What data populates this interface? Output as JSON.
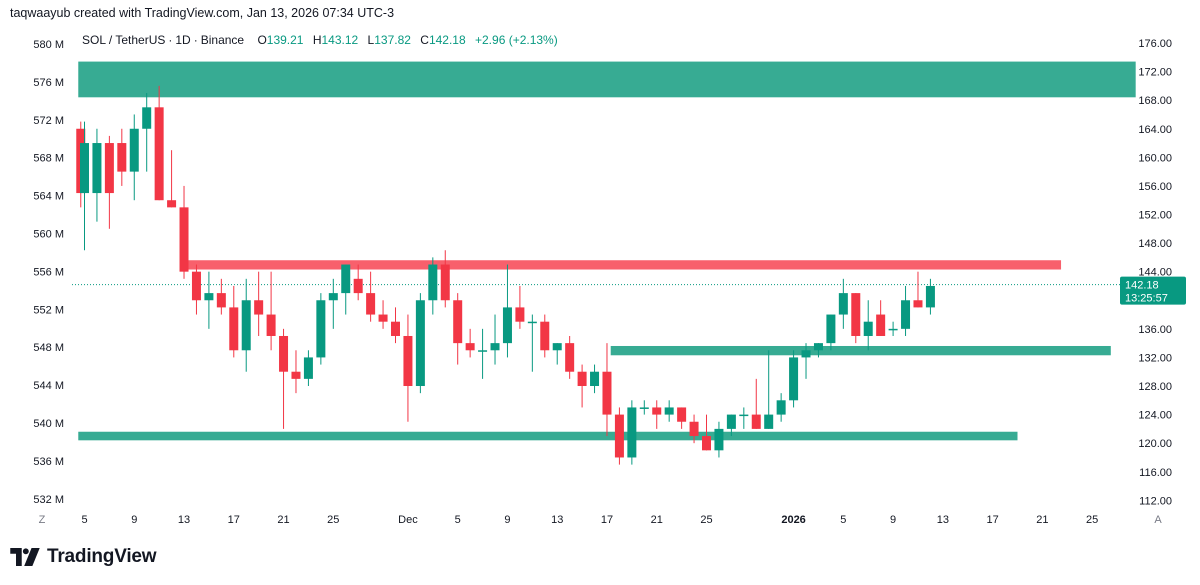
{
  "caption": "taqwaayub created with TradingView.com, Jan 13, 2026 07:34 UTC-3",
  "legend": {
    "symbol": "SOL / TetherUS",
    "interval": "1D",
    "exchange": "Binance",
    "open_label": "O",
    "open": "139.21",
    "high_label": "H",
    "high": "143.12",
    "low_label": "L",
    "low": "137.82",
    "close_label": "C",
    "close": "142.18",
    "change": "+2.96 (+2.13%)"
  },
  "brand": {
    "name": "TradingView"
  },
  "colors": {
    "up": "#089981",
    "down": "#f23645",
    "zone_green": "#26a48a",
    "zone_red": "#f7525f",
    "price_label": "#089981"
  },
  "chart_data": {
    "type": "candlestick",
    "title": "SOL / TetherUS · 1D · Binance",
    "right_axis": {
      "ylim": [
        110,
        177.5
      ],
      "ticks": [
        "176.00",
        "172.00",
        "168.00",
        "164.00",
        "160.00",
        "156.00",
        "152.00",
        "148.00",
        "144.00",
        "140.00",
        "136.00",
        "132.00",
        "128.00",
        "124.00",
        "120.00",
        "116.00",
        "112.00"
      ]
    },
    "left_axis": {
      "ticks": [
        "580 M",
        "576 M",
        "572 M",
        "568 M",
        "564 M",
        "560 M",
        "556 M",
        "552 M",
        "548 M",
        "544 M",
        "540 M",
        "536 M",
        "532 M"
      ]
    },
    "x_ticks": [
      {
        "day": 0,
        "label": "5"
      },
      {
        "day": 4,
        "label": "9"
      },
      {
        "day": 8,
        "label": "13"
      },
      {
        "day": 12,
        "label": "17"
      },
      {
        "day": 16,
        "label": "21"
      },
      {
        "day": 20,
        "label": "25"
      },
      {
        "day": 26,
        "label": "Dec"
      },
      {
        "day": 30,
        "label": "5"
      },
      {
        "day": 34,
        "label": "9"
      },
      {
        "day": 38,
        "label": "13"
      },
      {
        "day": 42,
        "label": "17"
      },
      {
        "day": 46,
        "label": "21"
      },
      {
        "day": 50,
        "label": "25"
      },
      {
        "day": 57,
        "label": "2026",
        "bold": true
      },
      {
        "day": 61,
        "label": "5"
      },
      {
        "day": 65,
        "label": "9"
      },
      {
        "day": 69,
        "label": "13"
      },
      {
        "day": 73,
        "label": "17"
      },
      {
        "day": 77,
        "label": "21"
      },
      {
        "day": 81,
        "label": "25"
      }
    ],
    "corner_labels": {
      "left": "Z",
      "right": "A"
    },
    "last_price": {
      "price": 142.18,
      "label": "142.18",
      "countdown": "13:25:57"
    },
    "zones": [
      {
        "name": "supply-top",
        "from_day": -0.5,
        "to_day": 84.5,
        "top": 173.4,
        "bottom": 168.4,
        "color": "#26a48a"
      },
      {
        "name": "resistance",
        "from_day": 8,
        "to_day": 78.5,
        "top": 145.6,
        "bottom": 144.3,
        "color": "#f7525f"
      },
      {
        "name": "support-mid",
        "from_day": 42.3,
        "to_day": 82.5,
        "top": 133.6,
        "bottom": 132.3,
        "color": "#26a48a"
      },
      {
        "name": "support-low",
        "from_day": -0.5,
        "to_day": 75,
        "top": 121.6,
        "bottom": 120.4,
        "color": "#26a48a"
      }
    ],
    "candles": [
      {
        "day": -0.3,
        "o": 164,
        "h": 165,
        "l": 153,
        "c": 155
      },
      {
        "day": 0,
        "o": 155,
        "h": 165,
        "l": 147,
        "c": 162
      },
      {
        "day": 1,
        "o": 155,
        "h": 164,
        "l": 151,
        "c": 162
      },
      {
        "day": 2,
        "o": 162,
        "h": 163,
        "l": 150,
        "c": 155
      },
      {
        "day": 3,
        "o": 162,
        "h": 164,
        "l": 156,
        "c": 158
      },
      {
        "day": 4,
        "o": 158,
        "h": 166,
        "l": 154,
        "c": 164
      },
      {
        "day": 5,
        "o": 164,
        "h": 169,
        "l": 158,
        "c": 167
      },
      {
        "day": 6,
        "o": 167,
        "h": 170,
        "l": 154,
        "c": 154
      },
      {
        "day": 7,
        "o": 154,
        "h": 161,
        "l": 153,
        "c": 153
      },
      {
        "day": 8,
        "o": 153,
        "h": 156,
        "l": 143,
        "c": 144
      },
      {
        "day": 9,
        "o": 144,
        "h": 145,
        "l": 138,
        "c": 140
      },
      {
        "day": 10,
        "o": 140,
        "h": 144,
        "l": 136,
        "c": 141
      },
      {
        "day": 11,
        "o": 141,
        "h": 143,
        "l": 138,
        "c": 139
      },
      {
        "day": 12,
        "o": 139,
        "h": 142,
        "l": 132,
        "c": 133
      },
      {
        "day": 13,
        "o": 133,
        "h": 143,
        "l": 130,
        "c": 140
      },
      {
        "day": 14,
        "o": 140,
        "h": 144,
        "l": 135,
        "c": 138
      },
      {
        "day": 15,
        "o": 138,
        "h": 144,
        "l": 133,
        "c": 135
      },
      {
        "day": 16,
        "o": 135,
        "h": 136,
        "l": 122,
        "c": 130
      },
      {
        "day": 17,
        "o": 130,
        "h": 133,
        "l": 127,
        "c": 129
      },
      {
        "day": 18,
        "o": 129,
        "h": 133,
        "l": 128,
        "c": 132
      },
      {
        "day": 19,
        "o": 132,
        "h": 141,
        "l": 131,
        "c": 140
      },
      {
        "day": 20,
        "o": 140,
        "h": 143,
        "l": 136,
        "c": 141
      },
      {
        "day": 21,
        "o": 141,
        "h": 145,
        "l": 138,
        "c": 145
      },
      {
        "day": 22,
        "o": 143,
        "h": 145,
        "l": 140,
        "c": 141
      },
      {
        "day": 23,
        "o": 141,
        "h": 144,
        "l": 137,
        "c": 138
      },
      {
        "day": 24,
        "o": 138,
        "h": 140,
        "l": 136,
        "c": 137
      },
      {
        "day": 25,
        "o": 137,
        "h": 139,
        "l": 134,
        "c": 135
      },
      {
        "day": 26,
        "o": 135,
        "h": 138,
        "l": 123,
        "c": 128
      },
      {
        "day": 27,
        "o": 128,
        "h": 141,
        "l": 127,
        "c": 140
      },
      {
        "day": 28,
        "o": 140,
        "h": 146,
        "l": 138,
        "c": 145
      },
      {
        "day": 29,
        "o": 145,
        "h": 147,
        "l": 139,
        "c": 140
      },
      {
        "day": 30,
        "o": 140,
        "h": 141,
        "l": 131,
        "c": 134
      },
      {
        "day": 31,
        "o": 134,
        "h": 136,
        "l": 132,
        "c": 133
      },
      {
        "day": 32,
        "o": 133,
        "h": 136,
        "l": 129,
        "c": 133
      },
      {
        "day": 33,
        "o": 133,
        "h": 138,
        "l": 131,
        "c": 134
      },
      {
        "day": 34,
        "o": 134,
        "h": 145,
        "l": 132,
        "c": 139
      },
      {
        "day": 35,
        "o": 139,
        "h": 142,
        "l": 136,
        "c": 137
      },
      {
        "day": 36,
        "o": 137,
        "h": 138,
        "l": 130,
        "c": 137
      },
      {
        "day": 37,
        "o": 137,
        "h": 138,
        "l": 132,
        "c": 133
      },
      {
        "day": 38,
        "o": 133,
        "h": 134,
        "l": 131,
        "c": 134
      },
      {
        "day": 39,
        "o": 134,
        "h": 135,
        "l": 129,
        "c": 130
      },
      {
        "day": 40,
        "o": 130,
        "h": 131,
        "l": 125,
        "c": 128
      },
      {
        "day": 41,
        "o": 128,
        "h": 131,
        "l": 127,
        "c": 130
      },
      {
        "day": 42,
        "o": 130,
        "h": 134,
        "l": 121,
        "c": 124
      },
      {
        "day": 43,
        "o": 124,
        "h": 125,
        "l": 117,
        "c": 118
      },
      {
        "day": 44,
        "o": 118,
        "h": 126,
        "l": 117,
        "c": 125
      },
      {
        "day": 45,
        "o": 125,
        "h": 126,
        "l": 124,
        "c": 125
      },
      {
        "day": 46,
        "o": 125,
        "h": 126,
        "l": 122,
        "c": 124
      },
      {
        "day": 47,
        "o": 124,
        "h": 126,
        "l": 123,
        "c": 125
      },
      {
        "day": 48,
        "o": 125,
        "h": 125,
        "l": 122,
        "c": 123
      },
      {
        "day": 49,
        "o": 123,
        "h": 124,
        "l": 120,
        "c": 121
      },
      {
        "day": 50,
        "o": 121,
        "h": 124,
        "l": 119,
        "c": 119
      },
      {
        "day": 51,
        "o": 119,
        "h": 123,
        "l": 118,
        "c": 122
      },
      {
        "day": 52,
        "o": 122,
        "h": 124,
        "l": 121,
        "c": 124
      },
      {
        "day": 53,
        "o": 124,
        "h": 125,
        "l": 122,
        "c": 124
      },
      {
        "day": 54,
        "o": 124,
        "h": 129,
        "l": 122,
        "c": 122
      },
      {
        "day": 55,
        "o": 122,
        "h": 133,
        "l": 122,
        "c": 124
      },
      {
        "day": 56,
        "o": 124,
        "h": 127,
        "l": 123,
        "c": 126
      },
      {
        "day": 57,
        "o": 126,
        "h": 133,
        "l": 125,
        "c": 132
      },
      {
        "day": 58,
        "o": 132,
        "h": 134,
        "l": 129,
        "c": 133
      },
      {
        "day": 59,
        "o": 133,
        "h": 134,
        "l": 132,
        "c": 134
      },
      {
        "day": 60,
        "o": 134,
        "h": 138,
        "l": 133,
        "c": 138
      },
      {
        "day": 61,
        "o": 138,
        "h": 143,
        "l": 136,
        "c": 141
      },
      {
        "day": 62,
        "o": 141,
        "h": 141,
        "l": 134,
        "c": 135
      },
      {
        "day": 63,
        "o": 135,
        "h": 140,
        "l": 133,
        "c": 137
      },
      {
        "day": 64,
        "o": 138,
        "h": 140,
        "l": 135,
        "c": 135
      },
      {
        "day": 65,
        "o": 136,
        "h": 137,
        "l": 135,
        "c": 136
      },
      {
        "day": 66,
        "o": 136,
        "h": 142,
        "l": 135,
        "c": 140
      },
      {
        "day": 67,
        "o": 140,
        "h": 144,
        "l": 139,
        "c": 139
      },
      {
        "day": 68,
        "o": 139,
        "h": 143,
        "l": 138,
        "c": 142
      }
    ]
  }
}
